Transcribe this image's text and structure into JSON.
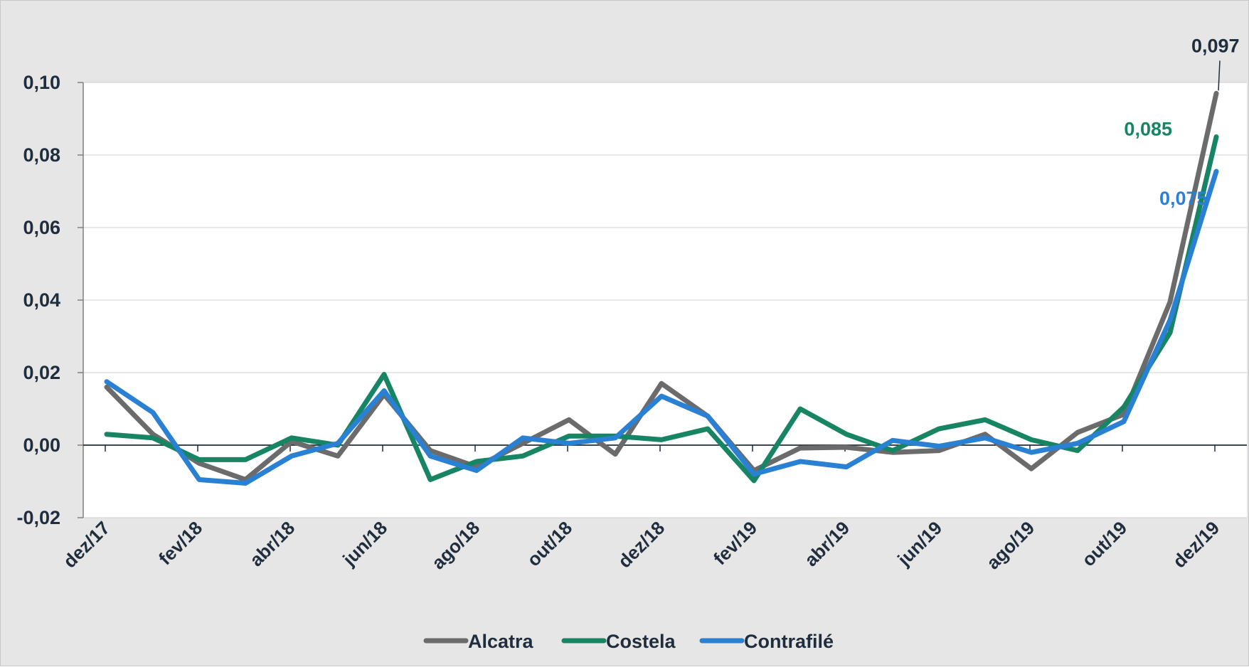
{
  "chart_data": {
    "type": "line",
    "x": [
      "dez/17",
      "jan/18",
      "fev/18",
      "mar/18",
      "abr/18",
      "mai/18",
      "jun/18",
      "jul/18",
      "ago/18",
      "set/18",
      "out/18",
      "nov/18",
      "dez/18",
      "jan/19",
      "fev/19",
      "mar/19",
      "abr/19",
      "mai/19",
      "jun/19",
      "jul/19",
      "ago/19",
      "set/19",
      "out/19",
      "nov/19",
      "dez/19"
    ],
    "x_tick_labels": [
      "dez/17",
      "fev/18",
      "abr/18",
      "jun/18",
      "ago/18",
      "out/18",
      "dez/18",
      "fev/19",
      "abr/19",
      "jun/19",
      "ago/19",
      "out/19",
      "dez/19"
    ],
    "ylim": [
      -0.02,
      0.1
    ],
    "y_tick_labels": [
      "-0,02",
      "0,00",
      "0,02",
      "0,04",
      "0,06",
      "0,08",
      "0,10"
    ],
    "y_ticks": [
      -0.02,
      0.0,
      0.02,
      0.04,
      0.06,
      0.08,
      0.1
    ],
    "grid": "horizontal",
    "legend_position": "bottom",
    "series": [
      {
        "name": "Alcatra",
        "color": "#6b6b6b",
        "values": [
          0.016,
          0.003,
          -0.005,
          -0.0095,
          0.001,
          -0.003,
          0.014,
          -0.0015,
          -0.006,
          0.0005,
          0.007,
          -0.0025,
          0.017,
          0.008,
          -0.007,
          -0.0008,
          -0.0006,
          -0.002,
          -0.0015,
          0.003,
          -0.0065,
          0.0035,
          0.0085,
          0.0395,
          0.097
        ]
      },
      {
        "name": "Costela",
        "color": "#178563",
        "values": [
          0.003,
          0.002,
          -0.004,
          -0.004,
          0.002,
          0.0,
          0.0195,
          -0.0095,
          -0.0045,
          -0.003,
          0.0025,
          0.0025,
          0.0015,
          0.0045,
          -0.0098,
          0.01,
          0.003,
          -0.0015,
          0.0045,
          0.007,
          0.0015,
          -0.0015,
          0.0105,
          0.031,
          0.085
        ]
      },
      {
        "name": "Contrafilé",
        "color": "#2a80d2",
        "values": [
          0.0175,
          0.009,
          -0.0095,
          -0.0105,
          -0.003,
          0.0005,
          0.015,
          -0.003,
          -0.007,
          0.002,
          0.0005,
          0.002,
          0.0135,
          0.008,
          -0.008,
          -0.0045,
          -0.006,
          0.0013,
          -0.0003,
          0.002,
          -0.002,
          0.0005,
          0.0065,
          0.0345,
          0.0755
        ]
      }
    ],
    "annotations": [
      {
        "series": "Alcatra",
        "text": "0,097"
      },
      {
        "series": "Costela",
        "text": "0,085"
      },
      {
        "series": "Contrafilé",
        "text": "0,075"
      }
    ]
  }
}
